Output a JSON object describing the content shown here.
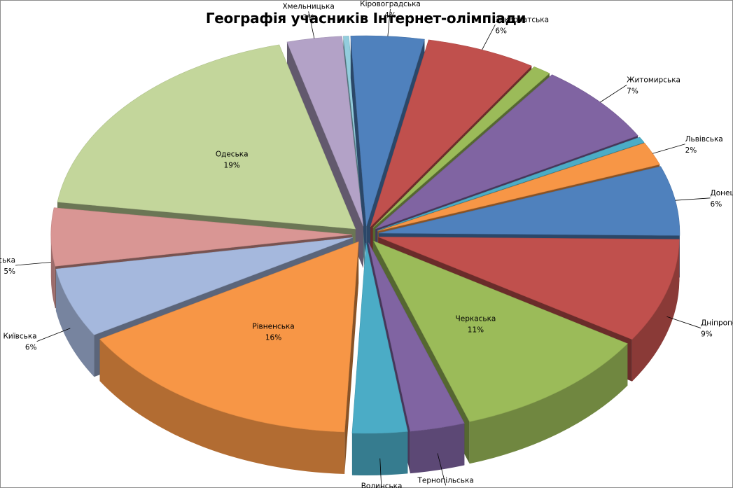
{
  "chart_data": {
    "type": "pie",
    "title": "Географія учасників Інтернет-олімпіади",
    "slices": [
      {
        "label": "Кіровоградська",
        "value": 4,
        "pct": "4%",
        "color": "#4f81bd"
      },
      {
        "label": "Закарпатська",
        "value": 6,
        "pct": "6%",
        "color": "#c0504d"
      },
      {
        "label": "",
        "value": 1,
        "pct": "",
        "color": "#9bbb59"
      },
      {
        "label": "Житомирська",
        "value": 7,
        "pct": "7%",
        "color": "#8064a2"
      },
      {
        "label": "",
        "value": 0.5,
        "pct": "",
        "color": "#4bacc6"
      },
      {
        "label": "Львівська",
        "value": 2,
        "pct": "2%",
        "color": "#f79646"
      },
      {
        "label": "Донецька",
        "value": 6,
        "pct": "6%",
        "color": "#4f81bd"
      },
      {
        "label": "Дніпропетровська",
        "value": 9,
        "pct": "9%",
        "color": "#c0504d"
      },
      {
        "label": "Черкаська",
        "value": 11,
        "pct": "11%",
        "color": "#9bbb59"
      },
      {
        "label": "Тернопільська",
        "value": 3,
        "pct": "3%",
        "color": "#8064a2"
      },
      {
        "label": "Волинська",
        "value": 3,
        "pct": "3%",
        "color": "#4bacc6"
      },
      {
        "label": "Рівненська",
        "value": 16,
        "pct": "16%",
        "color": "#f79646"
      },
      {
        "label": "Київська",
        "value": 6,
        "pct": "6%",
        "color": "#a5b8dd"
      },
      {
        "label": "Івано-Франківська",
        "value": 5,
        "pct": "5%",
        "color": "#d99694"
      },
      {
        "label": "Одеська",
        "value": 19,
        "pct": "19%",
        "color": "#c3d69b"
      },
      {
        "label": "Хмельницька",
        "value": 3,
        "pct": "3%",
        "color": "#b3a2c7"
      },
      {
        "label": "",
        "value": 0.3,
        "pct": "",
        "color": "#93cddd"
      }
    ],
    "legend": "none",
    "style": "3d-exploded"
  }
}
